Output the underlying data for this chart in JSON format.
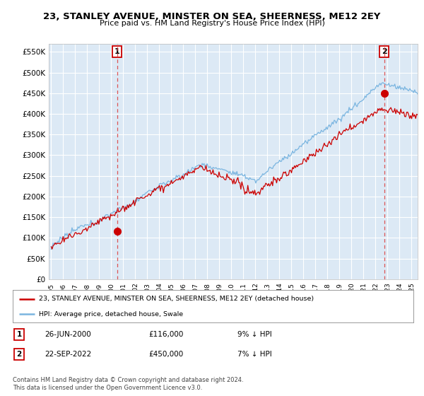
{
  "title": "23, STANLEY AVENUE, MINSTER ON SEA, SHEERNESS, ME12 2EY",
  "subtitle": "Price paid vs. HM Land Registry's House Price Index (HPI)",
  "ylim": [
    0,
    570000
  ],
  "yticks": [
    0,
    50000,
    100000,
    150000,
    200000,
    250000,
    300000,
    350000,
    400000,
    450000,
    500000,
    550000
  ],
  "xlim_start": 1994.8,
  "xlim_end": 2025.5,
  "background_color": "#dce9f5",
  "grid_color": "#ffffff",
  "sale1_date": 2000.49,
  "sale1_price": 116000,
  "sale1_label": "1",
  "sale2_date": 2022.72,
  "sale2_price": 450000,
  "sale2_label": "2",
  "legend_line1": "23, STANLEY AVENUE, MINSTER ON SEA, SHEERNESS, ME12 2EY (detached house)",
  "legend_line2": "HPI: Average price, detached house, Swale",
  "table_row1": [
    "1",
    "26-JUN-2000",
    "£116,000",
    "9% ↓ HPI"
  ],
  "table_row2": [
    "2",
    "22-SEP-2022",
    "£450,000",
    "7% ↓ HPI"
  ],
  "footer": "Contains HM Land Registry data © Crown copyright and database right 2024.\nThis data is licensed under the Open Government Licence v3.0.",
  "hpi_color": "#7ab5e0",
  "price_color": "#cc0000",
  "sale_marker_color": "#cc0000",
  "dashed_color": "#dd4444"
}
